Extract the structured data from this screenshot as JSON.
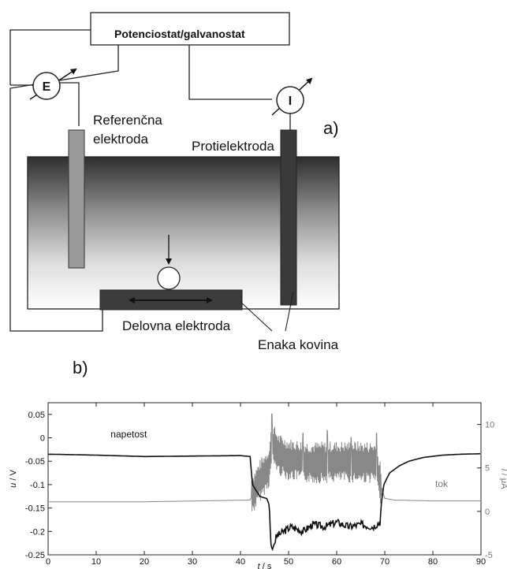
{
  "diagram": {
    "panel_label": "a)",
    "instrument_label": "Potenciostat/galvanostat",
    "meter_e": "E",
    "meter_i": "I",
    "reference_label_line1": "Referenčna",
    "reference_label_line2": "elektroda",
    "counter_label": "Protielektroda",
    "working_label": "Delovna elektroda",
    "same_metal_label": "Enaka kovina"
  },
  "chart_data": {
    "panel_label": "b)",
    "type": "line",
    "x": {
      "label_symbol": "t",
      "label_unit": " / s",
      "lim": [
        0,
        90
      ],
      "ticks": [
        0,
        10,
        20,
        30,
        40,
        50,
        60,
        70,
        80,
        90
      ]
    },
    "y_left": {
      "label_symbol": "u",
      "label_unit": " / V",
      "lim": [
        -0.25,
        0.075
      ],
      "ticks": [
        0.05,
        0,
        -0.05,
        -0.1,
        -0.15,
        -0.2,
        -0.25
      ],
      "tick_labels": [
        "0.05",
        "0",
        "-0.05",
        "-0.1",
        "-0.15",
        "-0.2",
        "-0.25"
      ]
    },
    "y_right": {
      "label_symbol": "I",
      "label_unit": " / μA",
      "lim": [
        -5,
        12.5
      ],
      "ticks": [
        10,
        5,
        0,
        -5
      ],
      "tick_labels": [
        "10",
        "5",
        "0",
        "-5"
      ]
    },
    "series": [
      {
        "name": "napetost",
        "axis": "left",
        "color": "#111111",
        "x": [
          0,
          10,
          20,
          30,
          40,
          42,
          42.5,
          44,
          45.5,
          46,
          46.3,
          46.6,
          47.5,
          49,
          50.5,
          53,
          55,
          57.5,
          60,
          62.5,
          65,
          67.5,
          69,
          69.3,
          69.8,
          71,
          73,
          75,
          78,
          82,
          86,
          90
        ],
        "y": [
          -0.035,
          -0.037,
          -0.04,
          -0.039,
          -0.038,
          -0.04,
          -0.1,
          -0.125,
          -0.13,
          -0.145,
          -0.225,
          -0.24,
          -0.21,
          -0.2,
          -0.19,
          -0.2,
          -0.185,
          -0.19,
          -0.18,
          -0.19,
          -0.185,
          -0.19,
          -0.18,
          -0.14,
          -0.1,
          -0.075,
          -0.06,
          -0.05,
          -0.042,
          -0.037,
          -0.035,
          -0.034
        ]
      },
      {
        "name": "tok",
        "axis": "right",
        "color": "#888888",
        "x": [
          0,
          20,
          42,
          42.5,
          44,
          46,
          46.5,
          48,
          50,
          55,
          60,
          65,
          68,
          69.2,
          70,
          72,
          80,
          90
        ],
        "y": [
          1.1,
          1.1,
          1.3,
          2,
          3.5,
          5.2,
          8,
          6.5,
          6,
          5.6,
          5.7,
          5.7,
          5.6,
          3,
          1.5,
          1.3,
          1.2,
          1.2
        ],
        "noise": {
          "x_start": 42.3,
          "x_end": 69.3,
          "amplitude": 2.2,
          "spikes": [
            [
              46.5,
              11.2
            ],
            [
              53,
              9
            ],
            [
              58,
              9.3
            ],
            [
              63,
              8.5
            ],
            [
              68.3,
              9
            ]
          ]
        }
      }
    ],
    "annotations": [
      {
        "text": "napetost",
        "x": 13,
        "y": 0.001
      },
      {
        "text": "tok",
        "x": 80.5,
        "y": -0.105
      }
    ]
  }
}
